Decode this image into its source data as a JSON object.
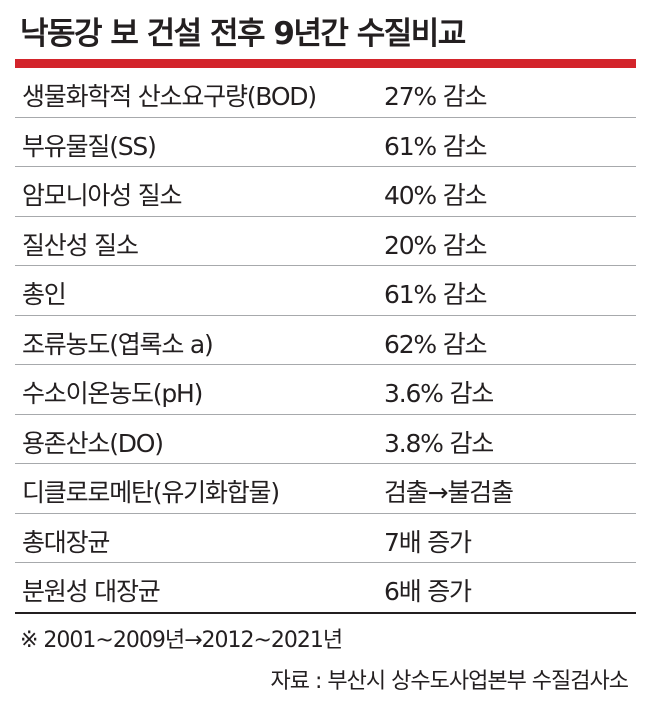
{
  "header": {
    "title": "낙동강 보 건설 전후 9년간 수질비교"
  },
  "table": {
    "rows": [
      [
        "생물화학적 산소요구량(BOD)",
        "27% 감소"
      ],
      [
        "부유물질(SS)",
        "61% 감소"
      ],
      [
        "암모니아성 질소",
        "40% 감소"
      ],
      [
        "질산성 질소",
        "20% 감소"
      ],
      [
        "총인",
        "61% 감소"
      ],
      [
        "조류농도(엽록소 a)",
        "62% 감소"
      ],
      [
        "수소이온농도(pH)",
        "3.6% 감소"
      ],
      [
        "용존산소(DO)",
        "3.8% 감소"
      ],
      [
        "디클로로메탄(유기화합물)",
        "검출→불검출"
      ],
      [
        "총대장균",
        "7배 증가"
      ],
      [
        "분원성 대장균",
        "6배 증가"
      ]
    ]
  },
  "footer": {
    "note": "※ 2001~2009년→2012~2021년",
    "source": "자료 : 부산시 상수도사업본부 수질검사소"
  }
}
